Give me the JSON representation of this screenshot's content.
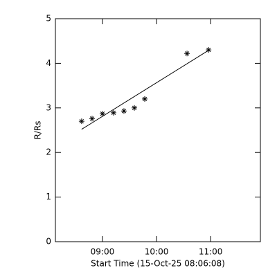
{
  "chart_data": {
    "type": "scatter",
    "xlabel": "Start Time (15-Oct-25 08:06:08)",
    "ylabel": "R/Rs",
    "xlim": [
      8.13,
      11.92
    ],
    "ylim": [
      0,
      5
    ],
    "xticks": [
      {
        "value": 9,
        "label": "09:00"
      },
      {
        "value": 10,
        "label": "10:00"
      },
      {
        "value": 11,
        "label": "11:00"
      }
    ],
    "yticks": [
      0,
      1,
      2,
      3,
      4,
      5
    ],
    "color": "#000000",
    "series": [
      {
        "marker": "asterisk",
        "x": [
          8.615,
          8.808,
          9.0,
          9.205,
          9.397,
          9.59,
          9.782,
          10.564,
          10.962
        ],
        "values": [
          2.7,
          2.76,
          2.87,
          2.89,
          2.93,
          3.0,
          3.2,
          4.22,
          4.3
        ]
      },
      {
        "marker": "line",
        "x": [
          8.615,
          10.962
        ],
        "values": [
          2.52,
          4.29
        ]
      }
    ]
  }
}
